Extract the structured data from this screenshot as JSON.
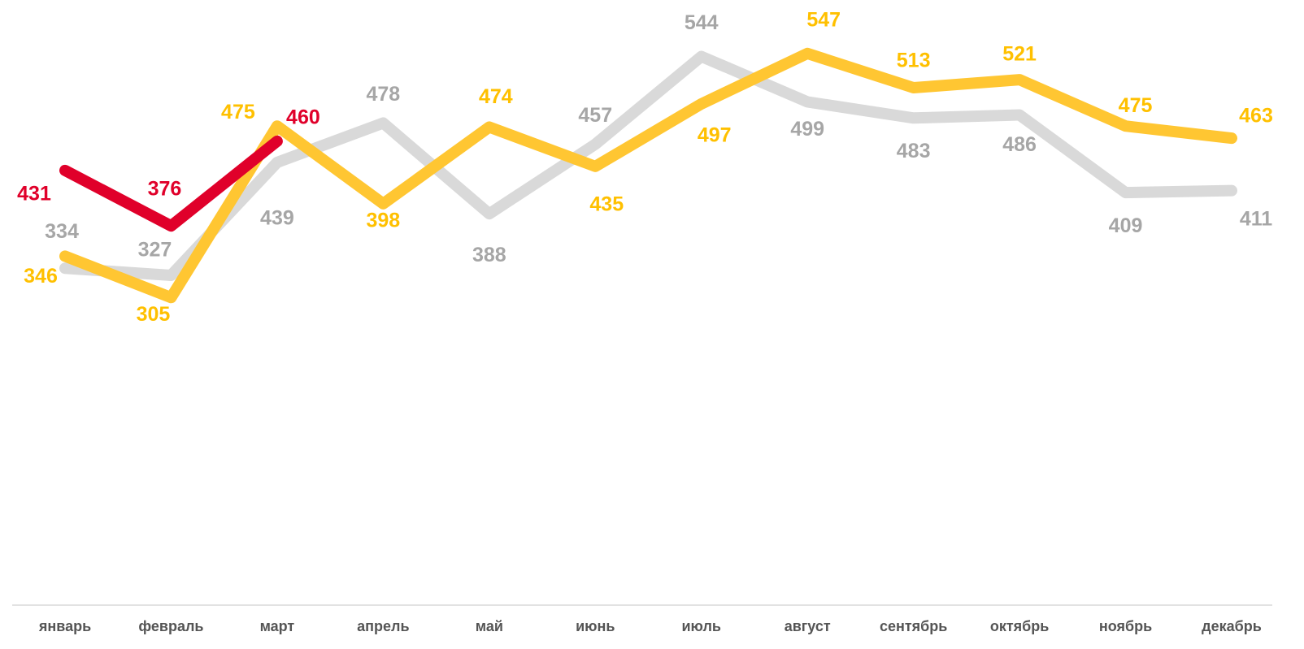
{
  "chart_data": {
    "type": "line",
    "categories": [
      "январь",
      "февраль",
      "март",
      "апрель",
      "май",
      "июнь",
      "июль",
      "август",
      "сентябрь",
      "октябрь",
      "ноябрь",
      "декабрь"
    ],
    "series": [
      {
        "color": "#d9d9d9",
        "label_color": "#a6a6a6",
        "values": [
          334,
          327,
          439,
          478,
          388,
          457,
          544,
          499,
          483,
          486,
          409,
          411
        ]
      },
      {
        "color": "#ffc632",
        "label_color": "#ffc000",
        "values": [
          346,
          305,
          475,
          398,
          474,
          435,
          497,
          547,
          513,
          521,
          475,
          463
        ]
      },
      {
        "color": "#e0002a",
        "label_color": "#e0002a",
        "values": [
          431,
          376,
          460,
          null,
          null,
          null,
          null,
          null,
          null,
          null,
          null,
          null
        ]
      }
    ],
    "ylim": [
      0,
      600
    ]
  }
}
